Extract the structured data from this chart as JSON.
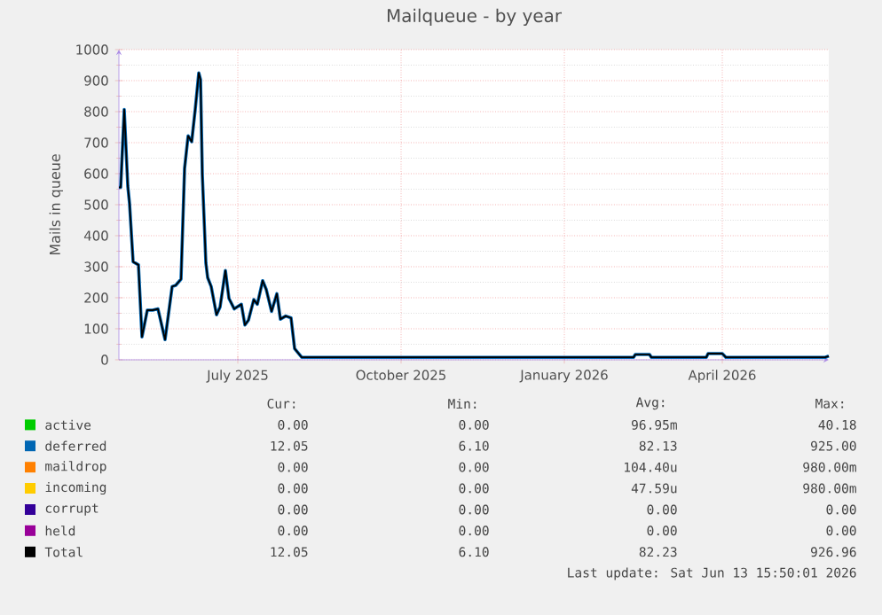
{
  "chart_data": {
    "type": "line",
    "title": "Mailqueue - by year",
    "ylabel": "Mails in queue",
    "xlim": [
      "2025-05-09",
      "2026-06-13"
    ],
    "xticks": [
      {
        "value": "2025-07-15",
        "label": "July 2025"
      },
      {
        "value": "2025-10-15",
        "label": "October 2025"
      },
      {
        "value": "2026-01-15",
        "label": "January 2026"
      },
      {
        "value": "2026-04-14",
        "label": "April 2026"
      }
    ],
    "ylim": [
      0,
      1000
    ],
    "yticks": [
      0,
      100,
      200,
      300,
      400,
      500,
      600,
      700,
      800,
      900,
      1000
    ],
    "grid": true,
    "legend": "bottom",
    "marker": "none",
    "line_style": "solid",
    "x": [
      "2025-05-09",
      "2025-05-10",
      "2025-05-12",
      "2025-05-14",
      "2025-05-15",
      "2025-05-17",
      "2025-05-20",
      "2025-05-22",
      "2025-05-25",
      "2025-05-28",
      "2025-05-31",
      "2025-06-04",
      "2025-06-08",
      "2025-06-10",
      "2025-06-13",
      "2025-06-15",
      "2025-06-17",
      "2025-06-19",
      "2025-06-21",
      "2025-06-23",
      "2025-06-24",
      "2025-06-25",
      "2025-06-27",
      "2025-06-28",
      "2025-06-30",
      "2025-07-03",
      "2025-07-05",
      "2025-07-08",
      "2025-07-10",
      "2025-07-13",
      "2025-07-17",
      "2025-07-19",
      "2025-07-21",
      "2025-07-24",
      "2025-07-26",
      "2025-07-29",
      "2025-07-31",
      "2025-08-03",
      "2025-08-06",
      "2025-08-08",
      "2025-08-11",
      "2025-08-14",
      "2025-08-16",
      "2025-08-18",
      "2025-08-20",
      "2026-02-23",
      "2026-02-24",
      "2026-03-04",
      "2026-03-05",
      "2026-04-05",
      "2026-04-06",
      "2026-04-14",
      "2026-04-16",
      "2026-06-11",
      "2026-06-13"
    ],
    "series": [
      {
        "name": "active",
        "color": "#00cc00",
        "values": [
          null,
          null,
          null,
          null,
          null,
          null,
          null,
          null,
          null,
          null,
          null,
          null,
          null,
          null,
          null,
          null,
          null,
          null,
          null,
          null,
          null,
          null,
          null,
          null,
          null,
          null,
          null,
          null,
          null,
          null,
          null,
          null,
          null,
          null,
          null,
          null,
          null,
          null,
          null,
          null,
          null,
          null,
          null,
          null,
          null,
          null,
          null,
          null,
          null,
          null,
          null,
          null,
          null,
          null,
          null
        ]
      },
      {
        "name": "deferred",
        "color": "#0066b3",
        "values": [
          556,
          556,
          807,
          560,
          503,
          316,
          306,
          74,
          160,
          160,
          164,
          65,
          236,
          240,
          260,
          617,
          722,
          703,
          807,
          925,
          903,
          598,
          312,
          265,
          236,
          145,
          170,
          288,
          198,
          164,
          179,
          112,
          128,
          194,
          179,
          255,
          227,
          156,
          213,
          131,
          141,
          135,
          36,
          22,
          8,
          8,
          17,
          17,
          8,
          8,
          20,
          20,
          8,
          8,
          12
        ]
      },
      {
        "name": "maildrop",
        "color": "#ff8000",
        "values": [
          null,
          null,
          null,
          null,
          null,
          null,
          null,
          null,
          null,
          null,
          null,
          null,
          null,
          null,
          null,
          null,
          null,
          null,
          null,
          null,
          null,
          null,
          null,
          null,
          null,
          null,
          null,
          null,
          null,
          null,
          null,
          null,
          null,
          null,
          null,
          null,
          null,
          null,
          null,
          null,
          null,
          null,
          null,
          null,
          null,
          null,
          null,
          null,
          null,
          null,
          null,
          null,
          null,
          null,
          null
        ]
      },
      {
        "name": "incoming",
        "color": "#ffcc00",
        "values": [
          null,
          null,
          null,
          null,
          null,
          null,
          null,
          null,
          null,
          null,
          null,
          null,
          null,
          null,
          null,
          null,
          null,
          null,
          null,
          null,
          null,
          null,
          null,
          null,
          null,
          null,
          null,
          null,
          null,
          null,
          null,
          null,
          null,
          null,
          null,
          null,
          null,
          null,
          null,
          null,
          null,
          null,
          null,
          null,
          null,
          null,
          null,
          null,
          null,
          null,
          null,
          null,
          null,
          null,
          null
        ]
      },
      {
        "name": "corrupt",
        "color": "#330099",
        "values": [
          null,
          null,
          null,
          null,
          null,
          null,
          null,
          null,
          null,
          null,
          null,
          null,
          null,
          null,
          null,
          null,
          null,
          null,
          null,
          null,
          null,
          null,
          null,
          null,
          null,
          null,
          null,
          null,
          null,
          null,
          null,
          null,
          null,
          null,
          null,
          null,
          null,
          null,
          null,
          null,
          null,
          null,
          null,
          null,
          null,
          null,
          null,
          null,
          null,
          null,
          null,
          null,
          null,
          null,
          null
        ]
      },
      {
        "name": "held",
        "color": "#990099",
        "values": [
          null,
          null,
          null,
          null,
          null,
          null,
          null,
          null,
          null,
          null,
          null,
          null,
          null,
          null,
          null,
          null,
          null,
          null,
          null,
          null,
          null,
          null,
          null,
          null,
          null,
          null,
          null,
          null,
          null,
          null,
          null,
          null,
          null,
          null,
          null,
          null,
          null,
          null,
          null,
          null,
          null,
          null,
          null,
          null,
          null,
          null,
          null,
          null,
          null,
          null,
          null,
          null,
          null,
          null,
          null
        ]
      },
      {
        "name": "Total",
        "color": "#000000",
        "values": [
          556,
          556,
          807,
          560,
          503,
          316,
          306,
          74,
          160,
          160,
          164,
          65,
          236,
          240,
          260,
          617,
          722,
          703,
          807,
          925,
          903,
          598,
          312,
          265,
          236,
          145,
          170,
          288,
          198,
          164,
          179,
          112,
          128,
          194,
          179,
          255,
          227,
          156,
          213,
          131,
          141,
          135,
          36,
          22,
          8,
          8,
          17,
          17,
          8,
          8,
          20,
          20,
          8,
          8,
          12
        ]
      }
    ],
    "annotations": [
      "Cur:",
      "Min:",
      "Avg:",
      "Max:",
      "0.00",
      "0.00",
      "96.95m",
      "40.18",
      "12.05",
      "6.10",
      "82.13",
      "925.00",
      "0.00",
      "0.00",
      "104.40u",
      "980.00m",
      "0.00",
      "0.00",
      "47.59u",
      "980.00m",
      "0.00",
      "0.00",
      "0.00",
      "0.00",
      "0.00",
      "0.00",
      "0.00",
      "0.00",
      "12.05",
      "6.10",
      "82.23",
      "926.96",
      "Last update: Sat Jun 13 15:50:01 2026"
    ]
  }
}
